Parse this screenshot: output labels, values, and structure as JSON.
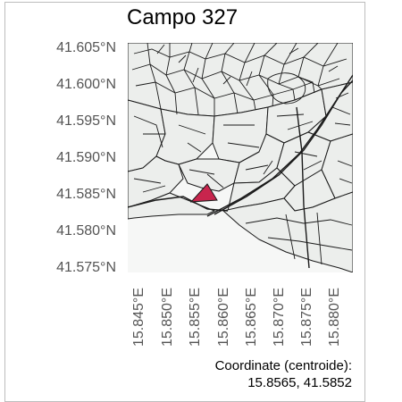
{
  "title": "Campo 327",
  "map": {
    "lat_ticks": [
      "41.605°N",
      "41.600°N",
      "41.595°N",
      "41.590°N",
      "41.585°N",
      "41.580°N",
      "41.575°N"
    ],
    "lon_ticks": [
      "15.845°E",
      "15.850°E",
      "15.855°E",
      "15.860°E",
      "15.865°E",
      "15.870°E",
      "15.875°E",
      "15.880°E"
    ],
    "highlight_color": "#c8254d",
    "fill_color": "#eef0ee",
    "line_color": "#1a1a1a"
  },
  "caption": {
    "line1": "Coordinate (centroide):",
    "line2": "15.8565, 41.5852"
  }
}
